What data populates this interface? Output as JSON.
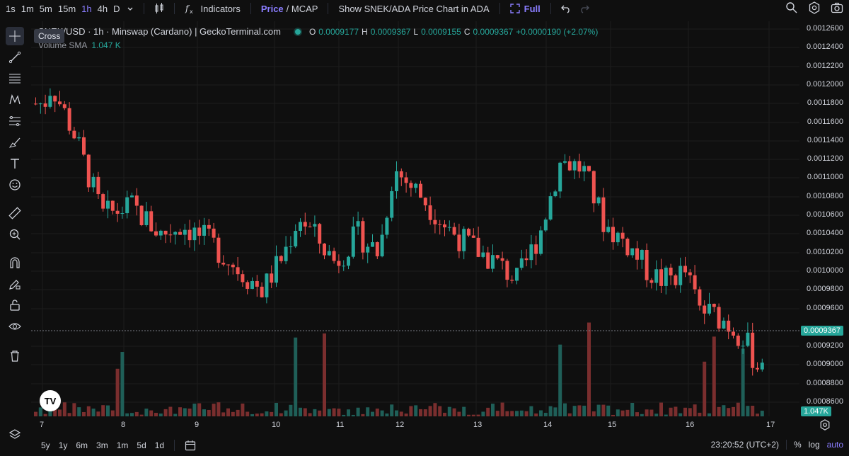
{
  "toolbar": {
    "timeframes": [
      "1s",
      "1m",
      "5m",
      "15m",
      "1h",
      "4h",
      "D"
    ],
    "active_timeframe": "1h",
    "indicators_label": "Indicators",
    "price_label": "Price",
    "mcap_label": "/ MCAP",
    "show_chart_label": "Show SNEK/ADA Price Chart in ADA",
    "full_label": "Full"
  },
  "tooltip": "Cross",
  "legend": {
    "pair": "SNEK/USD · 1h · Minswap (Cardano) | GeckoTerminal.com",
    "o_key": "O",
    "o_val": "0.0009177",
    "h_key": "H",
    "h_val": "0.0009367",
    "l_key": "L",
    "l_val": "0.0009155",
    "c_key": "C",
    "c_val": "0.0009367",
    "change": "+0.0000190 (+2.07%)",
    "volume_label": "Volume SMA",
    "volume_val": "1.047 K"
  },
  "y_axis": [
    "0.0012600",
    "0.0012400",
    "0.0012200",
    "0.0012000",
    "0.0011800",
    "0.0011600",
    "0.0011400",
    "0.0011200",
    "0.0011000",
    "0.0010800",
    "0.0010600",
    "0.0010400",
    "0.0010200",
    "0.0010000",
    "0.0009800",
    "0.0009600",
    "0.0009200",
    "0.0009000",
    "0.0008800",
    "0.0008600"
  ],
  "current_price_tag": "0.0009367",
  "volume_tag": "1.047K",
  "x_axis": [
    "7",
    "8",
    "9",
    "10",
    "11",
    "12",
    "13",
    "14",
    "15",
    "16",
    "17"
  ],
  "bottom": {
    "ranges": [
      "5y",
      "1y",
      "6m",
      "3m",
      "1m",
      "5d",
      "1d"
    ],
    "time": "23:20:52 (UTC+2)",
    "pct": "%",
    "log": "log",
    "auto": "auto"
  },
  "colors": {
    "up": "#26a69a",
    "down": "#ef5350",
    "accent": "#8a7dff"
  },
  "chart_data": {
    "type": "candlestick",
    "interval": "1h",
    "y_axis_range": [
      0.00085,
      0.00127
    ],
    "anchor_points": [
      {
        "x": "7",
        "close": 0.00118
      },
      {
        "x": "7.1",
        "close": 0.0012
      },
      {
        "x": "7.4",
        "close": 0.00115
      },
      {
        "x": "7.8",
        "close": 0.00106
      },
      {
        "x": "8.2",
        "close": 0.00107
      },
      {
        "x": "8.6",
        "close": 0.00104
      },
      {
        "x": "8.9",
        "close": 0.00105
      },
      {
        "x": "9.3",
        "close": 0.00103
      },
      {
        "x": "9.7",
        "close": 0.001
      },
      {
        "x": "10",
        "close": 0.00098
      },
      {
        "x": "10.3",
        "close": 0.00102
      },
      {
        "x": "10.5",
        "close": 0.00106
      },
      {
        "x": "11",
        "close": 0.00101
      },
      {
        "x": "11.3",
        "close": 0.00104
      },
      {
        "x": "11.6",
        "close": 0.00102
      },
      {
        "x": "11.8",
        "close": 0.00111
      },
      {
        "x": "12.2",
        "close": 0.00108
      },
      {
        "x": "12.5",
        "close": 0.00105
      },
      {
        "x": "12.8",
        "close": 0.00103
      },
      {
        "x": "13.2",
        "close": 0.00101
      },
      {
        "x": "13.5",
        "close": 0.00099
      },
      {
        "x": "13.8",
        "close": 0.00104
      },
      {
        "x": "14.1",
        "close": 0.00112
      },
      {
        "x": "14.4",
        "close": 0.00111
      },
      {
        "x": "14.7",
        "close": 0.00105
      },
      {
        "x": "15",
        "close": 0.00103
      },
      {
        "x": "15.3",
        "close": 0.001
      },
      {
        "x": "15.5",
        "close": 0.00099
      },
      {
        "x": "15.8",
        "close": 0.001
      },
      {
        "x": "16",
        "close": 0.00096
      },
      {
        "x": "16.3",
        "close": 0.00095
      },
      {
        "x": "16.6",
        "close": 0.00093
      },
      {
        "x": "16.8",
        "close": 0.000899
      },
      {
        "x": "17",
        "close": 0.0009367
      }
    ]
  }
}
